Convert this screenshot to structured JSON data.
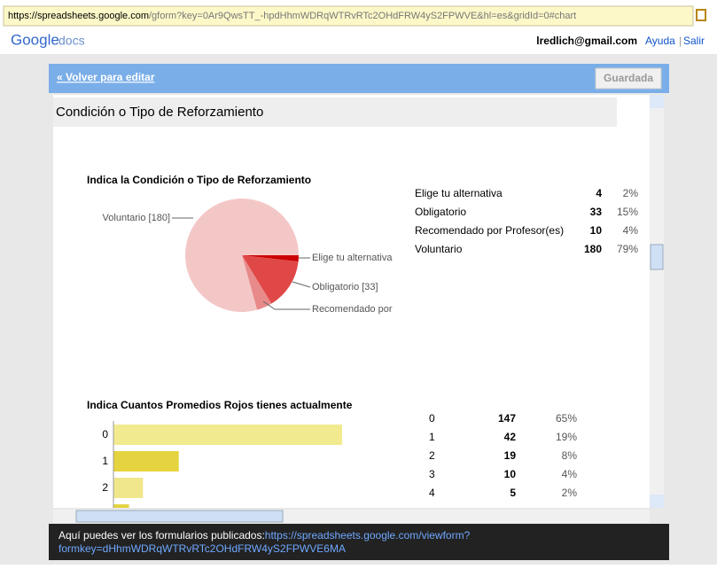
{
  "browser": {
    "url_host": "https://spreadsheets.google.com",
    "url_rest": "/gform?key=0Ar9QwsTT_-hpdHhmWDRqWTRvRTc2OHdFRW4yS2FPWVE&hl=es&gridId=0#chart"
  },
  "header": {
    "logo": "Google",
    "logo_suffix": "docs",
    "user": "lredlich@gmail.com",
    "links": [
      "Ayuda",
      "Salir"
    ]
  },
  "toolbar": {
    "back_link": "« Volver para editar",
    "button": "Guardada"
  },
  "section": {
    "title": "Condición o Tipo de Reforzamiento"
  },
  "charts": [
    {
      "type": "pie",
      "title": "Indica la Condición o Tipo de Reforzamiento",
      "callouts": [
        "Voluntario [180]",
        "Elige tu alternativa",
        "Obligatorio [33]",
        "Recomendado por"
      ],
      "colors": [
        "#cc0000",
        "#e04848",
        "#e88a8a",
        "#f4c7c7"
      ],
      "rows": [
        [
          "Elige tu alternativa",
          4,
          "2%"
        ],
        [
          "Obligatorio",
          33,
          "15%"
        ],
        [
          "Recomendado por Profesor(es)",
          10,
          "4%"
        ],
        [
          "Voluntario",
          180,
          "79%"
        ]
      ]
    },
    {
      "type": "bar",
      "title": "Indica Cuantos Promedios Rojos tienes actualmente",
      "colors": [
        "#f2ea8e",
        "#e5d440",
        "#f0e68c",
        "#e5d440",
        "#f0e68c"
      ],
      "rows": [
        [
          "0",
          147,
          "65%"
        ],
        [
          "1",
          42,
          "19%"
        ],
        [
          "2",
          19,
          "8%"
        ],
        [
          "3",
          10,
          "4%"
        ],
        [
          "4",
          5,
          "2%"
        ]
      ]
    }
  ],
  "footer": {
    "text": "Aquí puedes ver los formularios publicados: ",
    "link": "https://spreadsheets.google.com/viewform?formkey=dHhmWDRqWTRvRTc2OHdFRW4yS2FPWVE6MA"
  }
}
